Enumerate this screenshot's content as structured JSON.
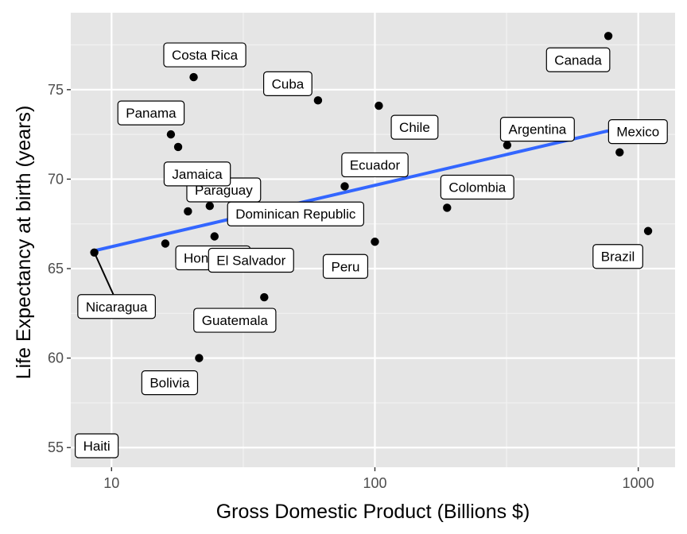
{
  "chart_data": {
    "type": "scatter",
    "title": "",
    "xlabel": "Gross Domestic Product (Billions $)",
    "ylabel": "Life Expectancy at birth (years)",
    "x_scale": "log10",
    "xlim": [
      7.0,
      1380
    ],
    "ylim": [
      53.9,
      79.3
    ],
    "x_ticks": [
      10,
      100,
      1000
    ],
    "x_tick_labels": [
      "10",
      "100",
      "1000"
    ],
    "y_ticks": [
      55,
      60,
      65,
      70,
      75
    ],
    "y_tick_labels": [
      "55",
      "60",
      "65",
      "70",
      "75"
    ],
    "grid": true,
    "background": "#e5e5e5",
    "point_color": "#000000",
    "trend_color": "#3366ff",
    "points": [
      {
        "country": "Haiti",
        "gdp": 8.6,
        "life": 53.9
      },
      {
        "country": "Nicaragua",
        "gdp": 8.6,
        "life": 65.9
      },
      {
        "country": "Honduras",
        "gdp": 16.0,
        "life": 66.4
      },
      {
        "country": "Paraguay",
        "gdp": 19.5,
        "life": 68.2
      },
      {
        "country": "Bolivia",
        "gdp": 21.5,
        "life": 60.0
      },
      {
        "country": "Panama",
        "gdp": 16.8,
        "life": 72.5
      },
      {
        "country": "Jamaica",
        "gdp": 17.9,
        "life": 71.8
      },
      {
        "country": "Costa Rica",
        "gdp": 20.5,
        "life": 75.7
      },
      {
        "country": "Dominican Republic",
        "gdp": 23.6,
        "life": 68.5
      },
      {
        "country": "El Salvador",
        "gdp": 24.6,
        "life": 66.8
      },
      {
        "country": "Guatemala",
        "gdp": 38.0,
        "life": 63.4
      },
      {
        "country": "Cuba",
        "gdp": 60.8,
        "life": 74.4
      },
      {
        "country": "Ecuador",
        "gdp": 76.8,
        "life": 69.6
      },
      {
        "country": "Peru",
        "gdp": 100.0,
        "life": 66.5
      },
      {
        "country": "Chile",
        "gdp": 103.5,
        "life": 74.1
      },
      {
        "country": "Colombia",
        "gdp": 188.0,
        "life": 68.4
      },
      {
        "country": "Argentina",
        "gdp": 318.0,
        "life": 71.9
      },
      {
        "country": "Canada",
        "gdp": 770.0,
        "life": 78.0
      },
      {
        "country": "Mexico",
        "gdp": 850.0,
        "life": 71.5
      },
      {
        "country": "Brazil",
        "gdp": 1090.0,
        "life": 67.1
      }
    ],
    "trend_line": {
      "x": [
        8.6,
        770.0
      ],
      "y": [
        66.0,
        72.7
      ]
    }
  }
}
